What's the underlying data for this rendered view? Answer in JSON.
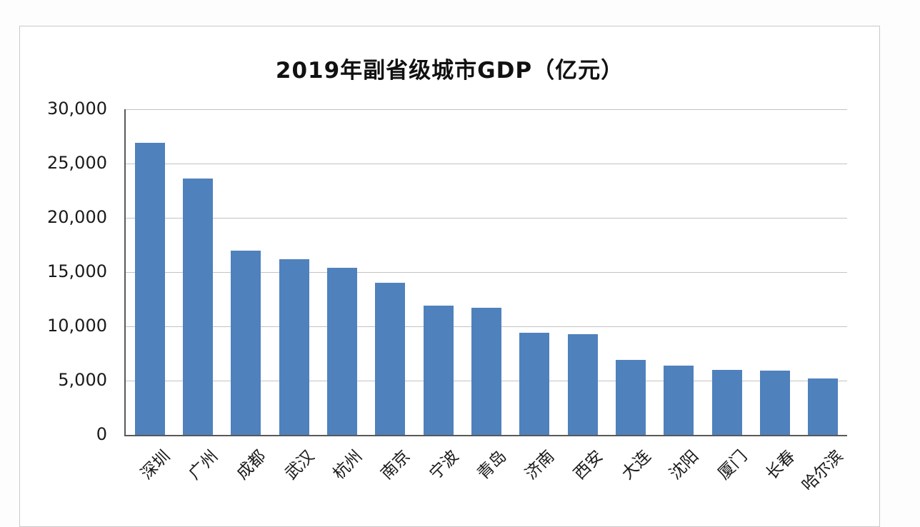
{
  "page": {
    "background_color": "#ffffff",
    "frame_border_color": "#c9c9c9"
  },
  "chart_data": {
    "type": "bar",
    "title": "2019年副省级城市GDP（亿元）",
    "categories": [
      "深圳",
      "广州",
      "成都",
      "武汉",
      "杭州",
      "南京",
      "宁波",
      "青岛",
      "济南",
      "西安",
      "大连",
      "沈阳",
      "厦门",
      "长春",
      "哈尔滨"
    ],
    "values": [
      26900,
      23600,
      17000,
      16200,
      15400,
      14000,
      11900,
      11700,
      9400,
      9300,
      6900,
      6400,
      6000,
      5900,
      5200
    ],
    "xlabel": "",
    "ylabel": "",
    "ylim": [
      0,
      30000
    ],
    "y_tick_step": 5000,
    "y_tick_labels": [
      "0",
      "5,000",
      "10,000",
      "15,000",
      "20,000",
      "25,000",
      "30,000"
    ],
    "grid": true,
    "legend_position": "none",
    "bar_color": "#4f81bd",
    "gridline_color": "#c3c3c3",
    "axis_color": "#595959",
    "x_label_rotation_deg": -45
  }
}
